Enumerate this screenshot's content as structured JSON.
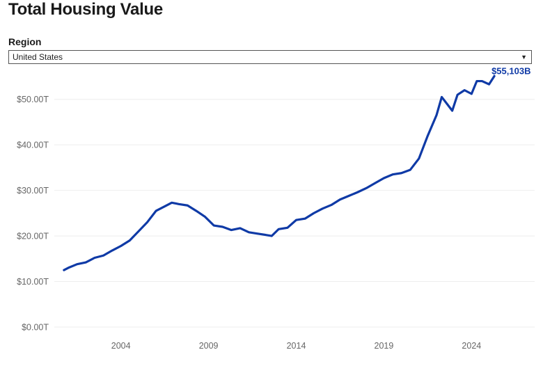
{
  "page": {
    "title": "Total Housing Value"
  },
  "filter": {
    "label": "Region",
    "selected": "United States",
    "caret": "▼"
  },
  "colors": {
    "line": "#0f3aa6",
    "label": "#0f3aa6",
    "grid": "#eeeeee",
    "tick": "#666666"
  },
  "chart_data": {
    "type": "line",
    "title": "",
    "xlabel": "",
    "ylabel": "",
    "xlim": [
      2000.2,
      2027.6
    ],
    "ylim": [
      0,
      55000
    ],
    "grid": true,
    "legend": "none",
    "y_ticks": [
      0,
      10000,
      20000,
      30000,
      40000,
      50000
    ],
    "y_tick_labels": [
      "$0.00T",
      "$10.00T",
      "$20.00T",
      "$30.00T",
      "$40.00T",
      "$50.00T"
    ],
    "x_ticks": [
      2004,
      2009,
      2014,
      2019,
      2024
    ],
    "x_tick_labels": [
      "2004",
      "2009",
      "2014",
      "2019",
      "2024"
    ],
    "last_point_label": "$55,103B",
    "units": "billions USD",
    "series": [
      {
        "name": "",
        "x": [
          2000.75,
          2001.0,
          2001.5,
          2002.0,
          2002.5,
          2003.0,
          2003.5,
          2004.0,
          2004.5,
          2005.0,
          2005.5,
          2006.0,
          2006.5,
          2006.9,
          2007.3,
          2007.8,
          2008.3,
          2008.8,
          2009.3,
          2009.8,
          2010.3,
          2010.8,
          2011.3,
          2011.8,
          2012.3,
          2012.6,
          2013.0,
          2013.5,
          2014.0,
          2014.5,
          2015.0,
          2015.5,
          2016.0,
          2016.5,
          2017.0,
          2017.5,
          2018.0,
          2018.5,
          2019.0,
          2019.5,
          2020.0,
          2020.5,
          2021.0,
          2021.5,
          2022.0,
          2022.3,
          2022.6,
          2022.9,
          2023.2,
          2023.6,
          2024.0,
          2024.3,
          2024.6,
          2025.0,
          2025.3
        ],
        "values": [
          12500,
          13000,
          13800,
          14200,
          15200,
          15700,
          16800,
          17800,
          19000,
          21000,
          23000,
          25500,
          26500,
          27300,
          27000,
          26700,
          25500,
          24200,
          22300,
          22000,
          21300,
          21700,
          20800,
          20500,
          20200,
          20000,
          21500,
          21800,
          23500,
          23800,
          25000,
          26000,
          26800,
          28000,
          28800,
          29600,
          30500,
          31600,
          32700,
          33500,
          33800,
          34500,
          37000,
          42000,
          46500,
          50500,
          49000,
          47500,
          51000,
          52000,
          51200,
          54000,
          54000,
          53300,
          55103
        ]
      }
    ]
  }
}
